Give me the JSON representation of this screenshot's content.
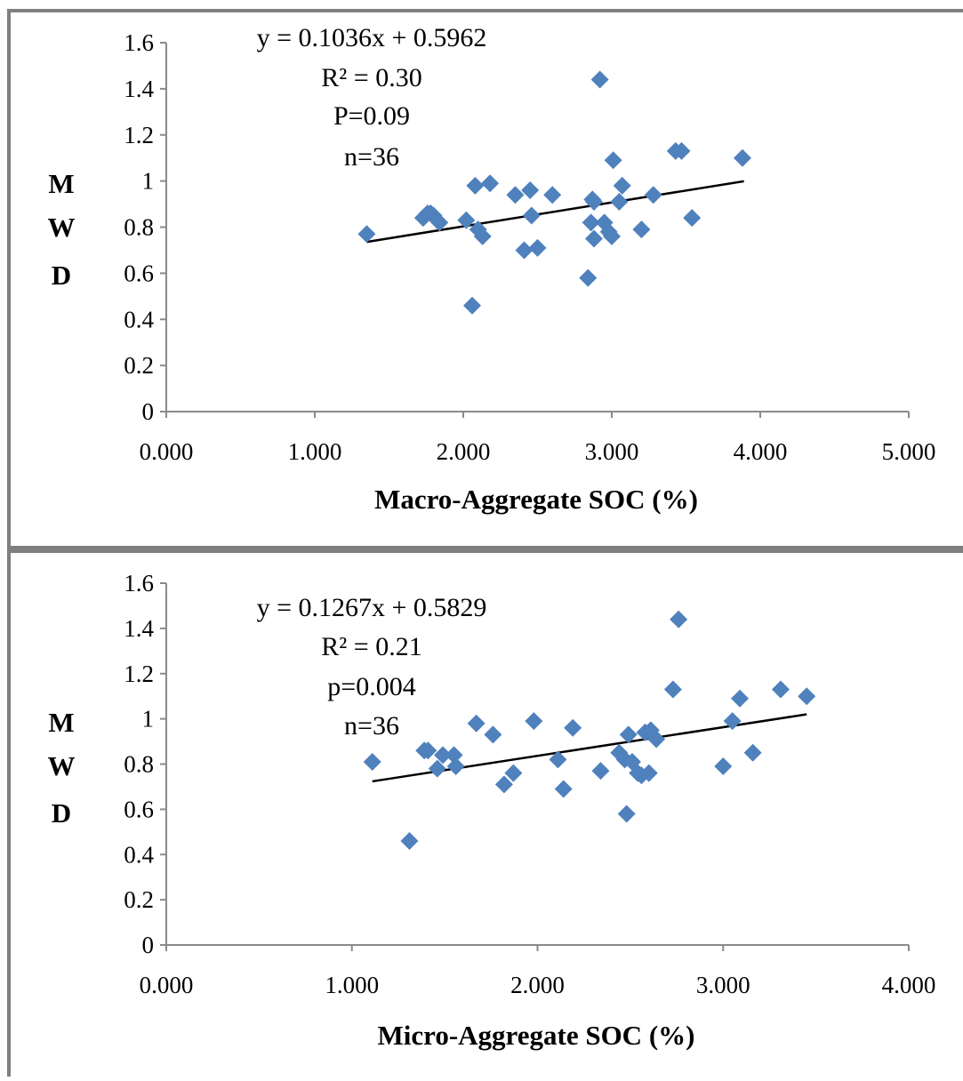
{
  "chart_data": [
    {
      "type": "scatter",
      "xlabel": "Macro-Aggregate SOC (%)",
      "ylabel": "MWD",
      "ylabel_letters": [
        "M",
        "W",
        "D"
      ],
      "xlim": [
        0,
        5
      ],
      "ylim": [
        0,
        1.6
      ],
      "x_ticks": [
        0,
        1,
        2,
        3,
        4,
        5
      ],
      "x_tick_labels": [
        "0.000",
        "1.000",
        "2.000",
        "3.000",
        "4.000",
        "5.000"
      ],
      "y_ticks": [
        0,
        0.2,
        0.4,
        0.6,
        0.8,
        1,
        1.2,
        1.4,
        1.6
      ],
      "y_tick_labels": [
        "0",
        "0.2",
        "0.4",
        "0.6",
        "0.8",
        "1",
        "1.2",
        "1.4",
        "1.6"
      ],
      "grid": false,
      "marker_color": "#4f81bd",
      "trendline": {
        "slope": 0.1036,
        "intercept": 0.5962,
        "x_range": [
          1.35,
          3.89
        ]
      },
      "annotations": [
        "y = 0.1036x + 0.5962",
        "R² = 0.30",
        "P=0.09",
        "n=36"
      ],
      "points": [
        [
          1.35,
          0.77
        ],
        [
          1.73,
          0.84
        ],
        [
          1.76,
          0.86
        ],
        [
          1.78,
          0.86
        ],
        [
          1.8,
          0.85
        ],
        [
          1.84,
          0.82
        ],
        [
          2.02,
          0.83
        ],
        [
          2.06,
          0.46
        ],
        [
          2.08,
          0.98
        ],
        [
          2.1,
          0.79
        ],
        [
          2.13,
          0.76
        ],
        [
          2.18,
          0.99
        ],
        [
          2.35,
          0.94
        ],
        [
          2.41,
          0.7
        ],
        [
          2.45,
          0.96
        ],
        [
          2.46,
          0.85
        ],
        [
          2.5,
          0.71
        ],
        [
          2.6,
          0.94
        ],
        [
          2.84,
          0.58
        ],
        [
          2.86,
          0.82
        ],
        [
          2.87,
          0.92
        ],
        [
          2.88,
          0.75
        ],
        [
          2.92,
          1.44
        ],
        [
          2.95,
          0.82
        ],
        [
          2.98,
          0.78
        ],
        [
          3.0,
          0.76
        ],
        [
          3.01,
          1.09
        ],
        [
          3.05,
          0.91
        ],
        [
          3.07,
          0.98
        ],
        [
          3.2,
          0.79
        ],
        [
          3.28,
          0.94
        ],
        [
          3.43,
          1.13
        ],
        [
          3.47,
          1.13
        ],
        [
          3.54,
          0.84
        ],
        [
          3.88,
          1.1
        ],
        [
          2.88,
          0.91
        ]
      ]
    },
    {
      "type": "scatter",
      "xlabel": "Micro-Aggregate SOC (%)",
      "ylabel": "MWD",
      "ylabel_letters": [
        "M",
        "W",
        "D"
      ],
      "xlim": [
        0,
        4
      ],
      "ylim": [
        0,
        1.6
      ],
      "x_ticks": [
        0,
        1,
        2,
        3,
        4
      ],
      "x_tick_labels": [
        "0.000",
        "1.000",
        "2.000",
        "3.000",
        "4.000"
      ],
      "y_ticks": [
        0,
        0.2,
        0.4,
        0.6,
        0.8,
        1,
        1.2,
        1.4,
        1.6
      ],
      "y_tick_labels": [
        "0",
        "0.2",
        "0.4",
        "0.6",
        "0.8",
        "1",
        "1.2",
        "1.4",
        "1.6"
      ],
      "grid": false,
      "marker_color": "#4f81bd",
      "trendline": {
        "slope": 0.1267,
        "intercept": 0.5829,
        "x_range": [
          1.11,
          3.45
        ]
      },
      "annotations": [
        "y = 0.1267x + 0.5829",
        "R² = 0.21",
        "p=0.004",
        "n=36"
      ],
      "points": [
        [
          1.11,
          0.81
        ],
        [
          1.31,
          0.46
        ],
        [
          1.39,
          0.86
        ],
        [
          1.41,
          0.86
        ],
        [
          1.46,
          0.78
        ],
        [
          1.49,
          0.84
        ],
        [
          1.55,
          0.84
        ],
        [
          1.56,
          0.79
        ],
        [
          1.67,
          0.98
        ],
        [
          1.76,
          0.93
        ],
        [
          1.82,
          0.71
        ],
        [
          1.87,
          0.76
        ],
        [
          1.98,
          0.99
        ],
        [
          2.11,
          0.82
        ],
        [
          2.14,
          0.69
        ],
        [
          2.19,
          0.96
        ],
        [
          2.34,
          0.77
        ],
        [
          2.44,
          0.85
        ],
        [
          2.47,
          0.82
        ],
        [
          2.48,
          0.58
        ],
        [
          2.49,
          0.93
        ],
        [
          2.51,
          0.81
        ],
        [
          2.54,
          0.76
        ],
        [
          2.56,
          0.75
        ],
        [
          2.58,
          0.94
        ],
        [
          2.6,
          0.76
        ],
        [
          2.61,
          0.95
        ],
        [
          2.64,
          0.91
        ],
        [
          2.73,
          1.13
        ],
        [
          2.76,
          1.44
        ],
        [
          3.0,
          0.79
        ],
        [
          3.05,
          0.99
        ],
        [
          3.09,
          1.09
        ],
        [
          3.16,
          0.85
        ],
        [
          3.31,
          1.13
        ],
        [
          3.45,
          1.1
        ]
      ]
    }
  ]
}
